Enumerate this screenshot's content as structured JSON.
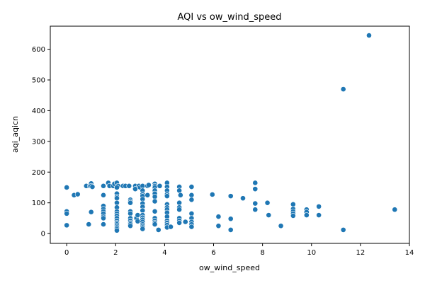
{
  "chart_data": {
    "type": "scatter",
    "title": "AQI vs ow_wind_speed",
    "xlabel": "ow_wind_speed",
    "ylabel": "aqi_aqicn",
    "xlim": [
      -0.67,
      14.0
    ],
    "ylim": [
      -32,
      675
    ],
    "xticks": [
      0,
      2,
      4,
      6,
      8,
      10,
      12,
      14
    ],
    "yticks": [
      0,
      100,
      200,
      300,
      400,
      500,
      600
    ],
    "marker_color": "#1f77b4",
    "grid": false,
    "points": [
      [
        0,
        150
      ],
      [
        0,
        72
      ],
      [
        0,
        65
      ],
      [
        0,
        27
      ],
      [
        0.3,
        125
      ],
      [
        0.45,
        128
      ],
      [
        0.8,
        155
      ],
      [
        0.9,
        30
      ],
      [
        0.95,
        155
      ],
      [
        1.0,
        163
      ],
      [
        1.0,
        155
      ],
      [
        1.05,
        152
      ],
      [
        1.0,
        70
      ],
      [
        1.5,
        155
      ],
      [
        1.5,
        125
      ],
      [
        1.5,
        90
      ],
      [
        1.5,
        80
      ],
      [
        1.5,
        72
      ],
      [
        1.5,
        65
      ],
      [
        1.5,
        55
      ],
      [
        1.5,
        50
      ],
      [
        1.5,
        30
      ],
      [
        1.7,
        165
      ],
      [
        1.75,
        155
      ],
      [
        1.9,
        155
      ],
      [
        1.95,
        162
      ],
      [
        2.05,
        165
      ],
      [
        2.1,
        155
      ],
      [
        2.05,
        150
      ],
      [
        2.05,
        130
      ],
      [
        2.05,
        120
      ],
      [
        2.05,
        115
      ],
      [
        2.05,
        100
      ],
      [
        2.05,
        85
      ],
      [
        2.05,
        72
      ],
      [
        2.05,
        65
      ],
      [
        2.05,
        58
      ],
      [
        2.05,
        50
      ],
      [
        2.05,
        42
      ],
      [
        2.05,
        35
      ],
      [
        2.05,
        30
      ],
      [
        2.05,
        25
      ],
      [
        2.05,
        20
      ],
      [
        2.05,
        15
      ],
      [
        2.05,
        10
      ],
      [
        2.3,
        155
      ],
      [
        2.4,
        155
      ],
      [
        2.55,
        155
      ],
      [
        2.6,
        110
      ],
      [
        2.6,
        105
      ],
      [
        2.6,
        100
      ],
      [
        2.6,
        72
      ],
      [
        2.6,
        65
      ],
      [
        2.6,
        50
      ],
      [
        2.6,
        42
      ],
      [
        2.6,
        35
      ],
      [
        2.6,
        30
      ],
      [
        2.6,
        25
      ],
      [
        2.8,
        155
      ],
      [
        2.8,
        145
      ],
      [
        2.85,
        50
      ],
      [
        2.9,
        60
      ],
      [
        2.9,
        40
      ],
      [
        2.95,
        155
      ],
      [
        3.0,
        150
      ],
      [
        3.1,
        155
      ],
      [
        3.1,
        140
      ],
      [
        3.1,
        128
      ],
      [
        3.1,
        122
      ],
      [
        3.1,
        112
      ],
      [
        3.1,
        98
      ],
      [
        3.1,
        87
      ],
      [
        3.1,
        75
      ],
      [
        3.1,
        60
      ],
      [
        3.1,
        52
      ],
      [
        3.1,
        45
      ],
      [
        3.1,
        38
      ],
      [
        3.1,
        30
      ],
      [
        3.1,
        25
      ],
      [
        3.1,
        20
      ],
      [
        3.1,
        15
      ],
      [
        3.3,
        155
      ],
      [
        3.3,
        125
      ],
      [
        3.35,
        158
      ],
      [
        3.6,
        162
      ],
      [
        3.6,
        155
      ],
      [
        3.6,
        150
      ],
      [
        3.6,
        140
      ],
      [
        3.6,
        130
      ],
      [
        3.6,
        120
      ],
      [
        3.6,
        105
      ],
      [
        3.6,
        72
      ],
      [
        3.6,
        50
      ],
      [
        3.6,
        42
      ],
      [
        3.6,
        35
      ],
      [
        3.6,
        30
      ],
      [
        3.75,
        12
      ],
      [
        3.8,
        155
      ],
      [
        4.1,
        165
      ],
      [
        4.1,
        152
      ],
      [
        4.1,
        140
      ],
      [
        4.1,
        128
      ],
      [
        4.1,
        122
      ],
      [
        4.1,
        95
      ],
      [
        4.1,
        85
      ],
      [
        4.1,
        78
      ],
      [
        4.1,
        68
      ],
      [
        4.1,
        55
      ],
      [
        4.1,
        42
      ],
      [
        4.1,
        35
      ],
      [
        4.1,
        28
      ],
      [
        4.1,
        20
      ],
      [
        4.25,
        22
      ],
      [
        4.6,
        152
      ],
      [
        4.6,
        140
      ],
      [
        4.65,
        125
      ],
      [
        4.6,
        100
      ],
      [
        4.6,
        85
      ],
      [
        4.6,
        78
      ],
      [
        4.6,
        50
      ],
      [
        4.6,
        42
      ],
      [
        4.6,
        35
      ],
      [
        4.85,
        38
      ],
      [
        5.1,
        152
      ],
      [
        5.1,
        125
      ],
      [
        5.1,
        110
      ],
      [
        5.1,
        65
      ],
      [
        5.1,
        50
      ],
      [
        5.1,
        38
      ],
      [
        5.1,
        30
      ],
      [
        5.1,
        22
      ],
      [
        5.95,
        127
      ],
      [
        6.2,
        55
      ],
      [
        6.2,
        25
      ],
      [
        6.7,
        122
      ],
      [
        6.7,
        48
      ],
      [
        6.7,
        12
      ],
      [
        7.2,
        115
      ],
      [
        7.7,
        165
      ],
      [
        7.7,
        145
      ],
      [
        7.7,
        98
      ],
      [
        7.7,
        78
      ],
      [
        8.2,
        100
      ],
      [
        8.25,
        60
      ],
      [
        8.75,
        25
      ],
      [
        9.25,
        95
      ],
      [
        9.25,
        80
      ],
      [
        9.25,
        72
      ],
      [
        9.25,
        65
      ],
      [
        9.25,
        58
      ],
      [
        9.8,
        78
      ],
      [
        9.8,
        70
      ],
      [
        9.8,
        60
      ],
      [
        10.3,
        88
      ],
      [
        10.3,
        60
      ],
      [
        11.3,
        470
      ],
      [
        11.3,
        12
      ],
      [
        12.35,
        645
      ],
      [
        13.4,
        78
      ]
    ]
  }
}
